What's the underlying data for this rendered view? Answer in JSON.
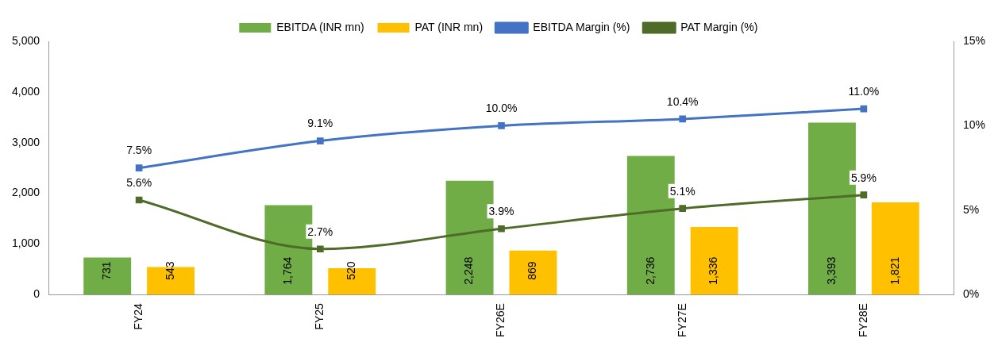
{
  "chart_data": {
    "type": "bar",
    "categories": [
      "FY24",
      "FY25",
      "FY26E",
      "FY27E",
      "FY28E"
    ],
    "series": [
      {
        "name": "EBITDA (INR mn)",
        "color": "#70ad47",
        "values": [
          731,
          1764,
          2248,
          2736,
          3393
        ],
        "value_labels": [
          "731",
          "1,764",
          "2,248",
          "2,736",
          "3,393"
        ]
      },
      {
        "name": "PAT (INR mn)",
        "color": "#ffc000",
        "values": [
          543,
          520,
          869,
          1336,
          1821
        ],
        "value_labels": [
          "543",
          "520",
          "869",
          "1,336",
          "1,821"
        ]
      },
      {
        "name": "EBITDA Margin (%)",
        "type": "line",
        "axis": "y2",
        "color": "#4472c4",
        "values": [
          7.5,
          9.1,
          10.0,
          10.4,
          11.0
        ],
        "value_labels": [
          "7.5%",
          "9.1%",
          "10.0%",
          "10.4%",
          "11.0%"
        ]
      },
      {
        "name": "PAT Margin (%)",
        "type": "line",
        "axis": "y2",
        "color": "#4e6b2a",
        "values": [
          5.6,
          2.7,
          3.9,
          5.1,
          5.9
        ],
        "value_labels": [
          "5.6%",
          "2.7%",
          "3.9%",
          "5.1%",
          "5.9%"
        ]
      }
    ],
    "ylim": [
      0,
      5000
    ],
    "yticks": [
      0,
      {
        "value": 1000,
        "label": "1,000"
      },
      {
        "value": 2000,
        "label": "2,000"
      },
      {
        "value": 3000,
        "label": "3,000"
      },
      {
        "value": 4000,
        "label": "4,000"
      },
      {
        "value": 5000,
        "label": "5,000"
      }
    ],
    "y2lim": [
      0,
      15
    ],
    "y2ticks": [
      {
        "value": 0,
        "label": "0%"
      },
      {
        "value": 5,
        "label": "5%"
      },
      {
        "value": 10,
        "label": "10%"
      },
      {
        "value": 15,
        "label": "15%"
      }
    ],
    "marker": "square",
    "grid": false,
    "legend": "top"
  }
}
